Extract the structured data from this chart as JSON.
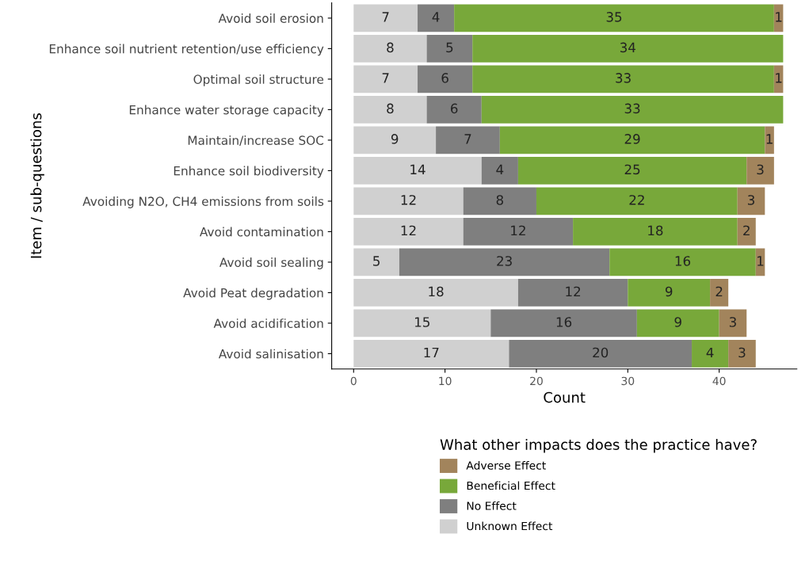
{
  "chart_data": {
    "type": "bar",
    "orientation": "horizontal",
    "stacked": true,
    "data_labels": true,
    "xlabel": "Count",
    "ylabel": "Item / sub-questions",
    "legend_title": "What other impacts does the practice have?",
    "legend": "bottom",
    "grid": false,
    "categories": [
      "Avoid soil erosion",
      "Enhance soil nutrient retention/use efficiency",
      "Optimal soil structure",
      "Enhance water storage capacity",
      "Maintain/increase SOC",
      "Enhance soil biodiversity",
      "Avoiding N2O, CH4 emissions from soils",
      "Avoid contamination",
      "Avoid soil sealing",
      "Avoid Peat degradation",
      "Avoid acidification",
      "Avoid salinisation"
    ],
    "xlim": [
      -2.4,
      48.5
    ],
    "xticks": [
      0,
      10,
      20,
      30,
      40
    ],
    "series": [
      {
        "name": "Unknown Effect",
        "color": "#d0d0d0",
        "values": [
          7,
          8,
          7,
          8,
          9,
          14,
          12,
          12,
          5,
          18,
          15,
          17
        ]
      },
      {
        "name": "No Effect",
        "color": "#7f7f7f",
        "values": [
          4,
          5,
          6,
          6,
          7,
          4,
          8,
          12,
          23,
          12,
          16,
          20
        ]
      },
      {
        "name": "Beneficial Effect",
        "color": "#78a83a",
        "values": [
          35,
          34,
          33,
          33,
          29,
          25,
          22,
          18,
          16,
          9,
          9,
          4
        ]
      },
      {
        "name": "Adverse Effect",
        "color": "#a2845c",
        "values": [
          1,
          null,
          1,
          null,
          1,
          3,
          3,
          2,
          1,
          2,
          3,
          3
        ]
      }
    ]
  }
}
